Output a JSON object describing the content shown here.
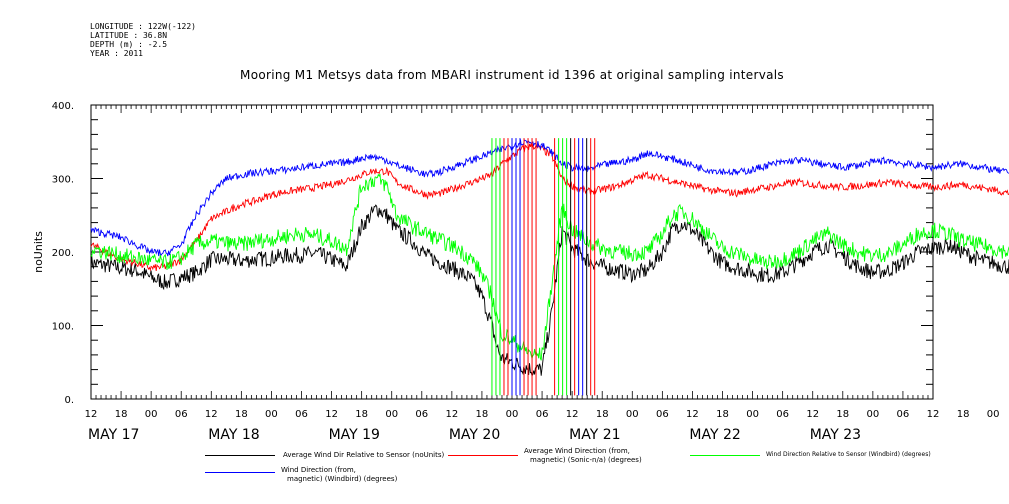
{
  "header": {
    "longitude": "LONGITUDE : 122W(-122)",
    "latitude": "LATITUDE : 36.8N",
    "depth": "DEPTH (m) : -2.5",
    "year": "YEAR : 2011"
  },
  "chart_data": {
    "type": "line",
    "title": "Mooring M1 Metsys data from MBARI instrument id 1396 at original sampling intervals",
    "ylabel": "noUnits",
    "xlabel": "",
    "ylim": [
      0,
      400
    ],
    "y_ticks": [
      "0.",
      "100.",
      "200.",
      "300.",
      "400."
    ],
    "x_hour_ticks": [
      "12",
      "18",
      "00",
      "06",
      "12",
      "18",
      "00",
      "06",
      "12",
      "18",
      "00",
      "06",
      "12",
      "18",
      "00",
      "06",
      "12",
      "18",
      "00",
      "06",
      "12",
      "18",
      "00",
      "06",
      "12",
      "18",
      "00",
      "06",
      "12",
      "18",
      "00"
    ],
    "x_day_labels": [
      "MAY 17",
      "MAY 18",
      "MAY 19",
      "MAY 20",
      "MAY 21",
      "MAY 22",
      "MAY 23"
    ],
    "x_range_hours": [
      12,
      180
    ],
    "series": [
      {
        "name": "Average Wind Dir Relative to Sensor (noUnits)",
        "color": "#000000",
        "points": [
          [
            12,
            185
          ],
          [
            15,
            182
          ],
          [
            18,
            178
          ],
          [
            21,
            175
          ],
          [
            24,
            165
          ],
          [
            27,
            158
          ],
          [
            30,
            165
          ],
          [
            33,
            172
          ],
          [
            36,
            190
          ],
          [
            39,
            190
          ],
          [
            42,
            188
          ],
          [
            45,
            190
          ],
          [
            48,
            192
          ],
          [
            51,
            195
          ],
          [
            54,
            196
          ],
          [
            57,
            198
          ],
          [
            60,
            190
          ],
          [
            63,
            180
          ],
          [
            66,
            235
          ],
          [
            69,
            260
          ],
          [
            71,
            250
          ],
          [
            73,
            230
          ],
          [
            76,
            215
          ],
          [
            79,
            195
          ],
          [
            82,
            185
          ],
          [
            85,
            175
          ],
          [
            88,
            162
          ],
          [
            90,
            140
          ],
          [
            92,
            100
          ],
          [
            93,
            70
          ],
          [
            94,
            55
          ],
          [
            96,
            50
          ],
          [
            98,
            45
          ],
          [
            100,
            40
          ],
          [
            102,
            40
          ],
          [
            104,
            120
          ],
          [
            106,
            230
          ],
          [
            108,
            205
          ],
          [
            111,
            190
          ],
          [
            114,
            180
          ],
          [
            117,
            175
          ],
          [
            120,
            170
          ],
          [
            123,
            175
          ],
          [
            126,
            200
          ],
          [
            128,
            230
          ],
          [
            130,
            240
          ],
          [
            132,
            230
          ],
          [
            135,
            205
          ],
          [
            138,
            185
          ],
          [
            141,
            178
          ],
          [
            144,
            172
          ],
          [
            147,
            168
          ],
          [
            150,
            172
          ],
          [
            153,
            185
          ],
          [
            156,
            200
          ],
          [
            159,
            210
          ],
          [
            162,
            195
          ],
          [
            165,
            180
          ],
          [
            168,
            172
          ],
          [
            171,
            175
          ],
          [
            174,
            185
          ],
          [
            177,
            200
          ],
          [
            180,
            205
          ],
          [
            183,
            210
          ],
          [
            186,
            200
          ],
          [
            189,
            190
          ],
          [
            192,
            185
          ],
          [
            195,
            180
          ],
          [
            198,
            178
          ]
        ]
      },
      {
        "name": "Average Wind Direction (from, magnetic) (Sonic-n/a) (degrees)",
        "color": "#ff0000",
        "points": [
          [
            12,
            210
          ],
          [
            15,
            200
          ],
          [
            18,
            190
          ],
          [
            21,
            185
          ],
          [
            24,
            178
          ],
          [
            27,
            180
          ],
          [
            30,
            190
          ],
          [
            33,
            215
          ],
          [
            36,
            245
          ],
          [
            39,
            255
          ],
          [
            42,
            265
          ],
          [
            45,
            270
          ],
          [
            48,
            278
          ],
          [
            51,
            282
          ],
          [
            54,
            285
          ],
          [
            57,
            288
          ],
          [
            60,
            292
          ],
          [
            63,
            298
          ],
          [
            66,
            305
          ],
          [
            68,
            310
          ],
          [
            71,
            310
          ],
          [
            73,
            295
          ],
          [
            76,
            285
          ],
          [
            79,
            278
          ],
          [
            82,
            280
          ],
          [
            85,
            288
          ],
          [
            88,
            295
          ],
          [
            90,
            300
          ],
          [
            92,
            305
          ],
          [
            94,
            320
          ],
          [
            96,
            330
          ],
          [
            98,
            340
          ],
          [
            100,
            345
          ],
          [
            102,
            340
          ],
          [
            104,
            330
          ],
          [
            106,
            300
          ],
          [
            108,
            290
          ],
          [
            111,
            282
          ],
          [
            114,
            285
          ],
          [
            117,
            290
          ],
          [
            120,
            298
          ],
          [
            123,
            305
          ],
          [
            126,
            300
          ],
          [
            129,
            295
          ],
          [
            132,
            290
          ],
          [
            135,
            285
          ],
          [
            138,
            282
          ],
          [
            141,
            280
          ],
          [
            144,
            285
          ],
          [
            147,
            288
          ],
          [
            150,
            292
          ],
          [
            153,
            295
          ],
          [
            156,
            292
          ],
          [
            159,
            290
          ],
          [
            162,
            288
          ],
          [
            165,
            290
          ],
          [
            168,
            292
          ],
          [
            171,
            295
          ],
          [
            174,
            292
          ],
          [
            177,
            290
          ],
          [
            180,
            288
          ],
          [
            183,
            290
          ],
          [
            186,
            292
          ],
          [
            189,
            288
          ],
          [
            192,
            285
          ],
          [
            195,
            280
          ],
          [
            198,
            290
          ]
        ]
      },
      {
        "name": "Wind Direction Relative to Sensor (Windbird) (degrees)",
        "color": "#00ff00",
        "points": [
          [
            12,
            205
          ],
          [
            15,
            200
          ],
          [
            18,
            195
          ],
          [
            21,
            192
          ],
          [
            24,
            188
          ],
          [
            27,
            185
          ],
          [
            30,
            192
          ],
          [
            33,
            210
          ],
          [
            36,
            215
          ],
          [
            39,
            212
          ],
          [
            42,
            210
          ],
          [
            45,
            215
          ],
          [
            48,
            218
          ],
          [
            51,
            222
          ],
          [
            54,
            225
          ],
          [
            57,
            222
          ],
          [
            60,
            215
          ],
          [
            63,
            205
          ],
          [
            66,
            290
          ],
          [
            69,
            300
          ],
          [
            71,
            290
          ],
          [
            73,
            250
          ],
          [
            76,
            235
          ],
          [
            79,
            225
          ],
          [
            82,
            215
          ],
          [
            85,
            205
          ],
          [
            88,
            190
          ],
          [
            90,
            170
          ],
          [
            92,
            140
          ],
          [
            93,
            110
          ],
          [
            94,
            90
          ],
          [
            96,
            80
          ],
          [
            98,
            70
          ],
          [
            100,
            60
          ],
          [
            102,
            60
          ],
          [
            104,
            160
          ],
          [
            106,
            260
          ],
          [
            108,
            230
          ],
          [
            111,
            215
          ],
          [
            114,
            205
          ],
          [
            117,
            200
          ],
          [
            120,
            198
          ],
          [
            123,
            200
          ],
          [
            126,
            225
          ],
          [
            128,
            250
          ],
          [
            130,
            255
          ],
          [
            132,
            245
          ],
          [
            135,
            225
          ],
          [
            138,
            205
          ],
          [
            141,
            198
          ],
          [
            144,
            190
          ],
          [
            147,
            185
          ],
          [
            150,
            190
          ],
          [
            153,
            200
          ],
          [
            156,
            215
          ],
          [
            159,
            225
          ],
          [
            162,
            210
          ],
          [
            165,
            200
          ],
          [
            168,
            195
          ],
          [
            171,
            198
          ],
          [
            174,
            210
          ],
          [
            177,
            225
          ],
          [
            180,
            230
          ],
          [
            183,
            225
          ],
          [
            186,
            215
          ],
          [
            189,
            210
          ],
          [
            192,
            205
          ],
          [
            195,
            200
          ],
          [
            198,
            202
          ]
        ]
      },
      {
        "name": "Wind Direction (from, magnetic) (Windbird) (degrees)",
        "color": "#0000ff",
        "points": [
          [
            12,
            230
          ],
          [
            15,
            225
          ],
          [
            18,
            220
          ],
          [
            21,
            210
          ],
          [
            24,
            200
          ],
          [
            27,
            198
          ],
          [
            30,
            210
          ],
          [
            33,
            250
          ],
          [
            36,
            280
          ],
          [
            39,
            300
          ],
          [
            42,
            305
          ],
          [
            45,
            308
          ],
          [
            48,
            310
          ],
          [
            51,
            312
          ],
          [
            54,
            315
          ],
          [
            57,
            318
          ],
          [
            60,
            320
          ],
          [
            63,
            322
          ],
          [
            66,
            328
          ],
          [
            68,
            330
          ],
          [
            71,
            325
          ],
          [
            73,
            318
          ],
          [
            76,
            312
          ],
          [
            79,
            305
          ],
          [
            82,
            310
          ],
          [
            85,
            318
          ],
          [
            88,
            325
          ],
          [
            90,
            330
          ],
          [
            92,
            335
          ],
          [
            94,
            340
          ],
          [
            96,
            345
          ],
          [
            98,
            350
          ],
          [
            100,
            350
          ],
          [
            102,
            345
          ],
          [
            104,
            335
          ],
          [
            106,
            320
          ],
          [
            108,
            315
          ],
          [
            111,
            312
          ],
          [
            114,
            318
          ],
          [
            117,
            322
          ],
          [
            120,
            325
          ],
          [
            123,
            335
          ],
          [
            126,
            330
          ],
          [
            129,
            325
          ],
          [
            132,
            318
          ],
          [
            135,
            312
          ],
          [
            138,
            310
          ],
          [
            141,
            308
          ],
          [
            144,
            312
          ],
          [
            147,
            318
          ],
          [
            150,
            322
          ],
          [
            153,
            325
          ],
          [
            156,
            322
          ],
          [
            159,
            318
          ],
          [
            162,
            315
          ],
          [
            165,
            318
          ],
          [
            168,
            322
          ],
          [
            171,
            325
          ],
          [
            174,
            320
          ],
          [
            177,
            318
          ],
          [
            180,
            315
          ],
          [
            183,
            318
          ],
          [
            186,
            320
          ],
          [
            189,
            316
          ],
          [
            192,
            312
          ],
          [
            195,
            308
          ],
          [
            198,
            315
          ]
        ]
      }
    ],
    "legend": [
      {
        "label_1": "Average Wind Dir Relative to Sensor (noUnits)",
        "label_2": "",
        "color": "#000000"
      },
      {
        "label_1": "Average Wind Direction (from,",
        "label_2": "magnetic) (Sonic-n/a) (degrees)",
        "color": "#ff0000"
      },
      {
        "label_1": "Wind Direction Relative to Sensor (Windbird) (degrees)",
        "label_2": "",
        "color": "#00ff00"
      },
      {
        "label_1": "Wind Direction (from,",
        "label_2": "magnetic) (Windbird) (degrees)",
        "color": "#0000ff"
      }
    ]
  }
}
